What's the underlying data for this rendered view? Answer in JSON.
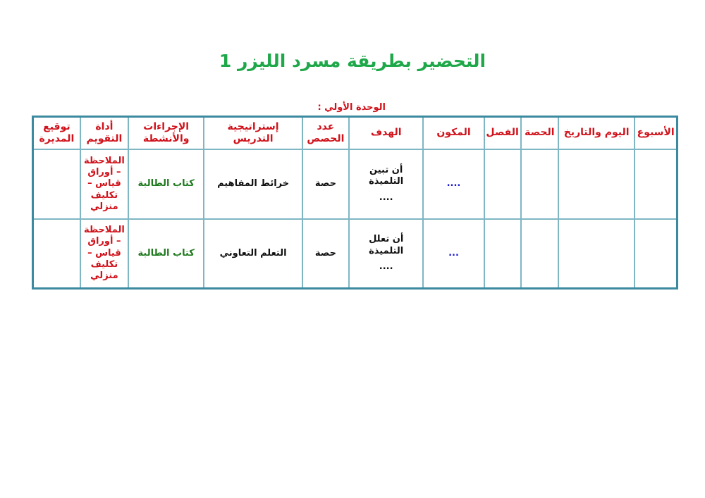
{
  "title": "التحضير بطريقة مسرد الليزر 1",
  "unit_label": "الوحدة الأولي :",
  "colors": {
    "title": "#1fa84a",
    "header": "#d0121b",
    "activities": "#1f7a1f",
    "component": "#1a1ad0",
    "border": "#3c8aa0"
  },
  "table": {
    "headers": [
      "الأسبوع",
      "اليوم والتاريخ",
      "الحصة",
      "الفصل",
      "المكون",
      "الهدف",
      "عدد الحصص",
      "إستراتيجية التدريس",
      "الإجراءات والأنشطة",
      "أداة التقويم",
      "توقيع المديرة"
    ],
    "rows": [
      {
        "week": "",
        "date": "",
        "period": "",
        "class": "",
        "component": "....",
        "objective_line1": "أن تبين التلميذة",
        "objective_line2": "....",
        "count": "حصة",
        "strategy": "خرائط المفاهيم",
        "activities": "كتاب الطالبة",
        "assessment": "الملاحظة – أوراق قياس – تكليف منزلي",
        "signature": ""
      },
      {
        "week": "",
        "date": "",
        "period": "",
        "class": "",
        "component": "...",
        "objective_line1": "أن تعلل التلميذة",
        "objective_line2": "....",
        "count": "حصة",
        "strategy": "التعلم التعاوني",
        "activities": "كتاب الطالبة",
        "assessment": "الملاحظة – أوراق قياس – تكليف منزلي",
        "signature": ""
      }
    ]
  }
}
